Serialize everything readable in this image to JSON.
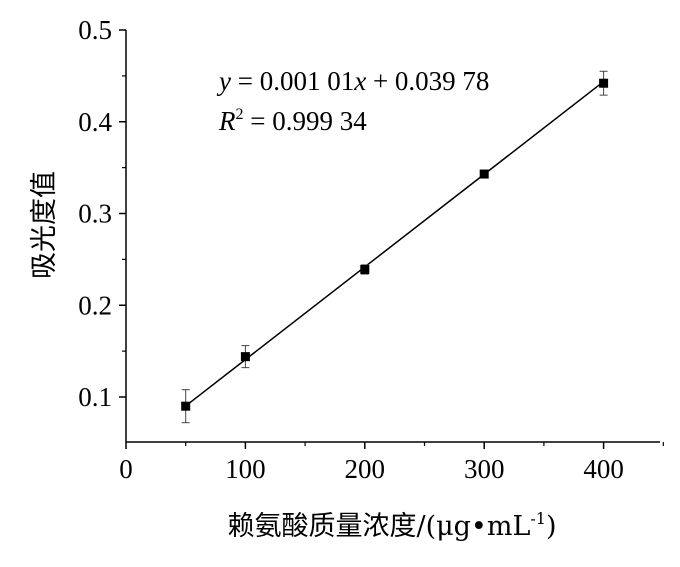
{
  "chart_data": {
    "type": "scatter",
    "xlabel": "赖氨酸质量浓度/(μg•mL-1)",
    "xlabel_main": "赖氨酸质量浓度/(μg•mL",
    "xlabel_sup": "-1",
    "xlabel_end": ")",
    "ylabel": "吸光度值",
    "xlim": [
      0,
      450
    ],
    "ylim": [
      0.05,
      0.5
    ],
    "xticks": [
      0,
      100,
      200,
      300,
      400
    ],
    "xtick_labels": [
      "0",
      "100",
      "200",
      "300",
      "400"
    ],
    "yticks": [
      0.1,
      0.2,
      0.3,
      0.4,
      0.5
    ],
    "ytick_labels": [
      "0.1",
      "0.2",
      "0.3",
      "0.4",
      "0.5"
    ],
    "x": [
      50,
      100,
      200,
      300,
      400
    ],
    "y": [
      0.09,
      0.144,
      0.239,
      0.343,
      0.442
    ],
    "error": [
      0.018,
      0.012,
      0.005,
      0.003,
      0.013
    ],
    "fit": {
      "slope": 0.00101,
      "intercept": 0.03978,
      "x_range": [
        50,
        400
      ]
    },
    "equation": {
      "line1_var": "y",
      "line1_rest": " = 0.001 01",
      "line1_x": "x",
      "line1_tail": " + 0.039 78",
      "line2_var": "R",
      "line2_sup": "2",
      "line2_rest": " = 0.999 34"
    },
    "grid": false,
    "legend": "none"
  }
}
